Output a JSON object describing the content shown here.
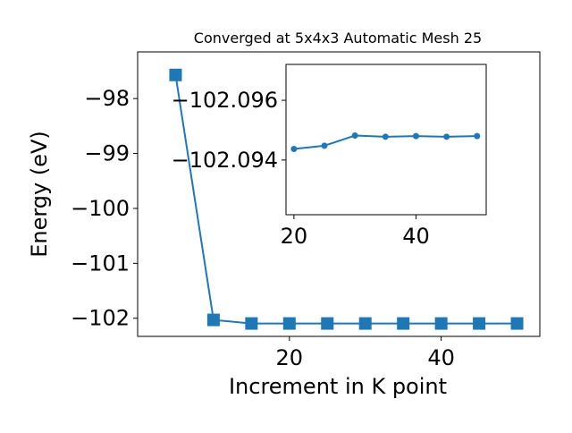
{
  "chart_data": [
    {
      "type": "line",
      "title": "Converged at 5x4x3 Automatic Mesh 25",
      "xlabel": "Increment in K point",
      "ylabel": "Energy (eV)",
      "x": [
        5,
        10,
        15,
        20,
        25,
        30,
        35,
        40,
        45,
        50
      ],
      "series": [
        {
          "values": [
            -97.57,
            -102.03,
            -102.095,
            -102.095,
            -102.095,
            -102.095,
            -102.095,
            -102.095,
            -102.095,
            -102.095
          ]
        }
      ],
      "xlim": [
        0,
        53
      ],
      "ylim": [
        -102.33,
        -97.15
      ],
      "xticks": [
        20,
        40
      ],
      "xtick_labels": [
        "20",
        "40"
      ],
      "yticks": [
        -98,
        -99,
        -100,
        -101,
        -102
      ],
      "ytick_labels": [
        "−98",
        "−99",
        "−100",
        "−101",
        "−102"
      ],
      "marker": "square",
      "color": "#1f77b4",
      "grid": false
    },
    {
      "type": "line",
      "title": "",
      "x": [
        20,
        25,
        30,
        35,
        40,
        45,
        50
      ],
      "series": [
        {
          "values": [
            -102.09437,
            -102.09448,
            -102.09482,
            -102.09478,
            -102.0948,
            -102.09478,
            -102.0948
          ]
        }
      ],
      "xlim": [
        18.7,
        51.5
      ],
      "ylim": [
        -102.09217,
        -102.0972
      ],
      "inverted_y": true,
      "xticks": [
        20,
        40
      ],
      "xtick_labels": [
        "20",
        "40"
      ],
      "yticks": [
        -102.096,
        -102.094
      ],
      "ytick_labels": [
        "−102.096",
        "−102.094"
      ],
      "marker": "circle",
      "color": "#1f77b4",
      "grid": false
    }
  ]
}
